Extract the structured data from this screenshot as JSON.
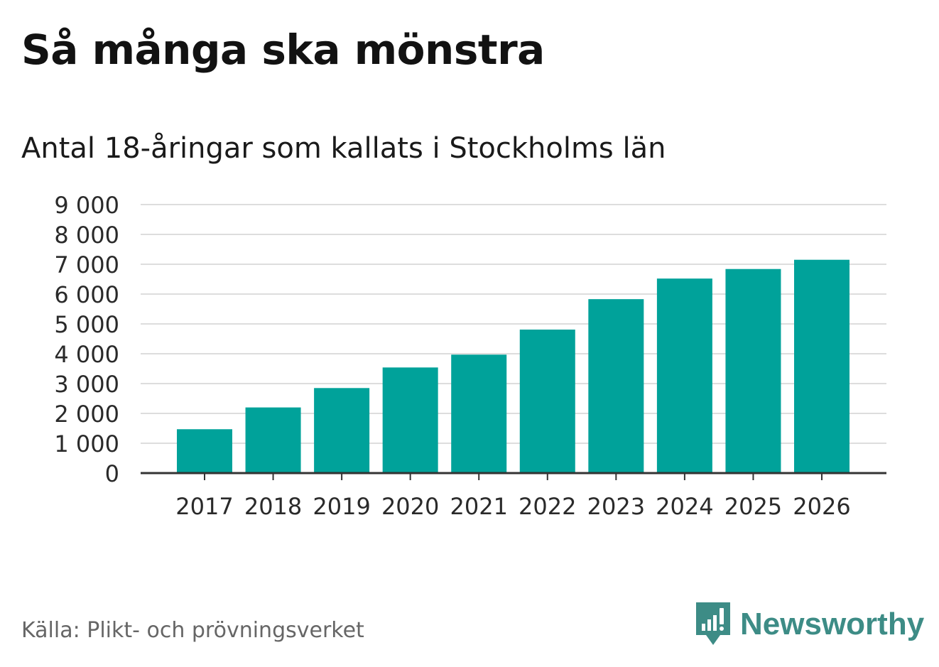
{
  "header": {
    "title": "Så många ska mönstra",
    "subtitle": "Antal 18-åringar som kallats i Stockholms län"
  },
  "footer": {
    "source": "Källa: Plikt- och prövningsverket",
    "brand": "Newsworthy",
    "brand_icon": "bar-chart-speech-bubble-icon"
  },
  "colors": {
    "bar": "#00a29a",
    "grid": "#dddddd",
    "axis": "#333333",
    "brand": "#3d8c86"
  },
  "chart_data": {
    "type": "bar",
    "title": "Så många ska mönstra",
    "subtitle": "Antal 18-åringar som kallats i Stockholms län",
    "xlabel": "",
    "ylabel": "",
    "categories": [
      "2017",
      "2018",
      "2019",
      "2020",
      "2021",
      "2022",
      "2023",
      "2024",
      "2025",
      "2026"
    ],
    "values": [
      1470,
      2200,
      2850,
      3540,
      3970,
      4810,
      5830,
      6520,
      6840,
      7150
    ],
    "ylim": [
      0,
      9000
    ],
    "yticks": [
      0,
      1000,
      2000,
      3000,
      4000,
      5000,
      6000,
      7000,
      8000,
      9000
    ],
    "ytick_labels": [
      "0",
      "1 000",
      "2 000",
      "3 000",
      "4 000",
      "5 000",
      "6 000",
      "7 000",
      "8 000",
      "9 000"
    ],
    "grid": true,
    "legend": "none"
  }
}
